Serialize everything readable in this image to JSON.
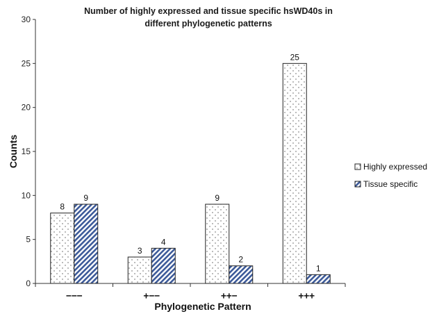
{
  "chart_data": {
    "type": "bar",
    "title_line1": "Number of highly expressed and tissue specific hsWD40s in",
    "title_line2": "different phylogenetic patterns",
    "xlabel": "Phylogenetic Pattern",
    "ylabel": "Counts",
    "categories": [
      "−−−",
      "+−−",
      "++−",
      "+++"
    ],
    "series": [
      {
        "name": "Highly expressed",
        "values": [
          8,
          3,
          9,
          25
        ],
        "pattern": "dots"
      },
      {
        "name": "Tissue specific",
        "values": [
          9,
          4,
          2,
          1
        ],
        "pattern": "diagonal-stripes",
        "color": "#3c5a99"
      }
    ],
    "ylim": [
      0,
      30
    ],
    "yticks": [
      0,
      5,
      10,
      15,
      20,
      25,
      30
    ],
    "grid": false,
    "legend_position": "right"
  }
}
